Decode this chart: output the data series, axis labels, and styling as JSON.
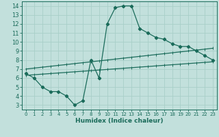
{
  "xlabel": "Humidex (Indice chaleur)",
  "xlim": [
    -0.5,
    23.5
  ],
  "ylim": [
    2.5,
    14.5
  ],
  "xticks": [
    0,
    1,
    2,
    3,
    4,
    5,
    6,
    7,
    8,
    9,
    10,
    11,
    12,
    13,
    14,
    15,
    16,
    17,
    18,
    19,
    20,
    21,
    22,
    23
  ],
  "yticks": [
    3,
    4,
    5,
    6,
    7,
    8,
    9,
    10,
    11,
    12,
    13,
    14
  ],
  "bg_color": "#c2e0dc",
  "line_color": "#1a6b5a",
  "grid_color": "#a8cfc8",
  "line1_x": [
    0,
    1,
    2,
    3,
    4,
    5,
    6,
    7,
    8,
    9,
    10,
    11,
    12,
    13,
    14,
    15,
    16,
    17,
    18,
    19,
    20,
    21,
    22,
    23
  ],
  "line1_y": [
    6.5,
    6.0,
    5.0,
    4.5,
    4.5,
    4.0,
    3.0,
    3.5,
    8.0,
    6.0,
    12.0,
    13.8,
    14.0,
    14.0,
    11.5,
    11.0,
    10.5,
    10.3,
    9.8,
    9.5,
    9.5,
    9.0,
    8.5,
    8.0
  ],
  "line2_y_start": 6.3,
  "line2_y_end": 7.8,
  "line3_y_start": 7.0,
  "line3_y_end": 9.3
}
